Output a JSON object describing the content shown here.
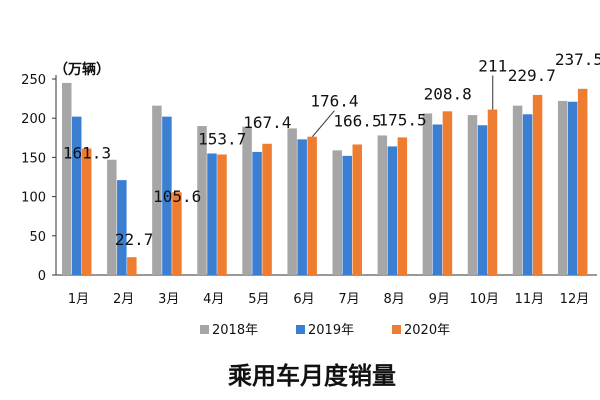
{
  "chart_data": {
    "type": "bar",
    "title": "乘用车月度销量",
    "ylabel": "（万辆）",
    "ylim": [
      0,
      250
    ],
    "yticks": [
      0,
      50,
      100,
      150,
      200,
      250
    ],
    "categories": [
      "1月",
      "2月",
      "3月",
      "4月",
      "5月",
      "6月",
      "7月",
      "8月",
      "9月",
      "10月",
      "11月",
      "12月"
    ],
    "series": [
      {
        "name": "2018年",
        "color": "#a6a6a6",
        "values": [
          245,
          147,
          216,
          190,
          189,
          187,
          159,
          178,
          206,
          204,
          216,
          222
        ]
      },
      {
        "name": "2019年",
        "color": "#3b7fd3",
        "values": [
          202,
          121,
          202,
          155,
          157,
          173,
          152,
          164,
          192,
          191,
          205,
          221
        ]
      },
      {
        "name": "2020年",
        "color": "#ef7d31",
        "values": [
          161.3,
          22.7,
          105.6,
          153.7,
          167.4,
          176.4,
          166.5,
          175.5,
          208.8,
          211,
          229.7,
          237.5
        ]
      }
    ],
    "data_labels": [
      "161.3",
      "22.7",
      "105.6",
      "153.7",
      "167.4",
      "176.4",
      "166.5",
      "175.5",
      "208.8",
      "211",
      "229.7",
      "237.5"
    ],
    "grid": false,
    "legend_position": "bottom"
  }
}
